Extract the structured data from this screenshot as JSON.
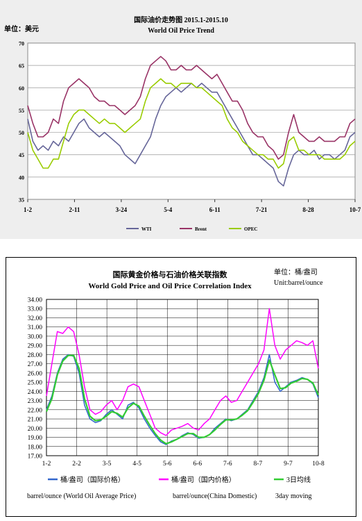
{
  "chart_data": [
    {
      "type": "line",
      "title": "国际油价走势图 2015.1-2015.10",
      "subtitle": "World Oil Price Trend",
      "unit_label": "单位：美元",
      "ylim": [
        35,
        70
      ],
      "yticks": [
        35,
        40,
        45,
        50,
        55,
        60,
        65,
        70
      ],
      "xtick_labels": [
        "1-2",
        "2-11",
        "3-24",
        "5-4",
        "6-11",
        "7-21",
        "8-28",
        "10-7"
      ],
      "grid": true,
      "legend_position": "bottom",
      "series": [
        {
          "name": "WTI",
          "color": "#666699",
          "values": [
            53,
            48,
            46,
            47,
            46,
            48,
            47,
            49,
            48,
            50,
            52,
            53,
            51,
            50,
            49,
            50,
            49,
            48,
            47,
            45,
            44,
            43,
            45,
            47,
            49,
            53,
            56,
            58,
            59,
            60,
            59,
            60,
            61,
            60,
            61,
            60,
            59,
            59,
            57,
            55,
            53,
            51,
            49,
            47,
            45,
            45,
            44,
            43,
            42,
            39,
            38,
            42,
            45,
            46,
            45,
            45,
            46,
            44,
            45,
            45,
            44,
            45,
            46,
            49,
            50
          ]
        },
        {
          "name": "Brent",
          "color": "#993366",
          "values": [
            56,
            52,
            49,
            49,
            50,
            53,
            52,
            57,
            60,
            61,
            62,
            61,
            60,
            58,
            57,
            57,
            56,
            56,
            55,
            54,
            55,
            56,
            58,
            62,
            65,
            66,
            67,
            66,
            64,
            64,
            65,
            64,
            64,
            65,
            64,
            63,
            62,
            63,
            61,
            59,
            57,
            57,
            55,
            52,
            50,
            49,
            49,
            47,
            46,
            44,
            45,
            50,
            54,
            50,
            49,
            48,
            48,
            49,
            48,
            48,
            48,
            49,
            49,
            52,
            53
          ]
        },
        {
          "name": "OPEC",
          "color": "#99cc00",
          "values": [
            50,
            46,
            44,
            42,
            42,
            44,
            44,
            48,
            52,
            54,
            55,
            55,
            54,
            53,
            52,
            53,
            52,
            52,
            51,
            50,
            51,
            52,
            53,
            57,
            60,
            61,
            62,
            61,
            61,
            60,
            61,
            61,
            61,
            60,
            60,
            59,
            58,
            57,
            56,
            53,
            51,
            50,
            48,
            47,
            46,
            45,
            45,
            44,
            44,
            42,
            43,
            48,
            49,
            46,
            46,
            45,
            45,
            45,
            44,
            44,
            44,
            44,
            45,
            47,
            48
          ]
        }
      ]
    },
    {
      "type": "line",
      "title": "国际黄金价格与石油价格关联指数",
      "subtitle": "World Gold Price and Oil Price Correlation Index",
      "unit_label": "单位：桶/盎司",
      "unit_label_en": "Unit:barrel/ounce",
      "ylim": [
        17,
        34
      ],
      "yticks": [
        "17.00",
        "18.00",
        "19.00",
        "20.00",
        "21.00",
        "22.00",
        "23.00",
        "24.00",
        "25.00",
        "26.00",
        "27.00",
        "28.00",
        "29.00",
        "30.00",
        "31.00",
        "32.00",
        "33.00",
        "34.00"
      ],
      "xtick_labels": [
        "1-2",
        "2-2",
        "3-5",
        "4-5",
        "5-6",
        "6-6",
        "7-6",
        "8-7",
        "9-7",
        "10-8"
      ],
      "grid": true,
      "legend_position": "bottom",
      "series": [
        {
          "name": "桶/盎司（国际价格）",
          "name_en": "barrel/ounce (World Oil Average Price)",
          "color": "#3366cc",
          "values": [
            22.0,
            23.5,
            26.0,
            27.5,
            28.0,
            27.8,
            26.0,
            22.5,
            21.0,
            20.6,
            20.8,
            21.5,
            22.0,
            21.5,
            21.0,
            22.5,
            22.8,
            22.2,
            21.0,
            20.0,
            19.2,
            18.5,
            18.2,
            18.6,
            18.8,
            19.2,
            19.5,
            19.3,
            18.9,
            19.0,
            19.3,
            20.0,
            20.5,
            21.0,
            20.8,
            21.0,
            21.5,
            22.0,
            23.0,
            24.0,
            25.5,
            28.0,
            25.0,
            24.0,
            24.5,
            25.0,
            25.2,
            25.5,
            25.3,
            24.8,
            23.3
          ]
        },
        {
          "name": "桶/盎司（国内价格）",
          "name_en": "barrel/ounce(China Domestic)",
          "color": "#ff00ff",
          "values": [
            23.5,
            27.0,
            30.5,
            30.3,
            31.0,
            30.5,
            28.0,
            24.5,
            22.0,
            21.5,
            21.8,
            22.5,
            23.0,
            22.0,
            23.0,
            24.5,
            24.8,
            24.5,
            23.0,
            21.5,
            20.0,
            19.5,
            19.2,
            19.8,
            20.0,
            20.2,
            20.5,
            20.0,
            19.8,
            20.5,
            21.0,
            22.0,
            23.0,
            23.5,
            22.8,
            23.0,
            24.0,
            25.0,
            26.0,
            27.0,
            28.5,
            33.0,
            29.0,
            27.5,
            28.5,
            29.0,
            29.5,
            29.3,
            29.0,
            29.5,
            26.5
          ]
        },
        {
          "name": "3日均线",
          "name_en": "3day moving",
          "color": "#33cc33",
          "values": [
            21.8,
            23.2,
            25.8,
            27.3,
            27.9,
            27.9,
            26.5,
            23.2,
            21.3,
            20.8,
            20.9,
            21.3,
            21.8,
            21.6,
            21.2,
            22.2,
            22.7,
            22.4,
            21.3,
            20.3,
            19.4,
            18.7,
            18.3,
            18.5,
            18.8,
            19.1,
            19.4,
            19.4,
            19.0,
            19.0,
            19.3,
            19.8,
            20.4,
            20.9,
            20.9,
            21.0,
            21.4,
            21.9,
            22.8,
            23.8,
            25.2,
            27.4,
            25.8,
            24.3,
            24.4,
            24.9,
            25.1,
            25.4,
            25.3,
            24.9,
            23.6
          ]
        }
      ]
    }
  ]
}
